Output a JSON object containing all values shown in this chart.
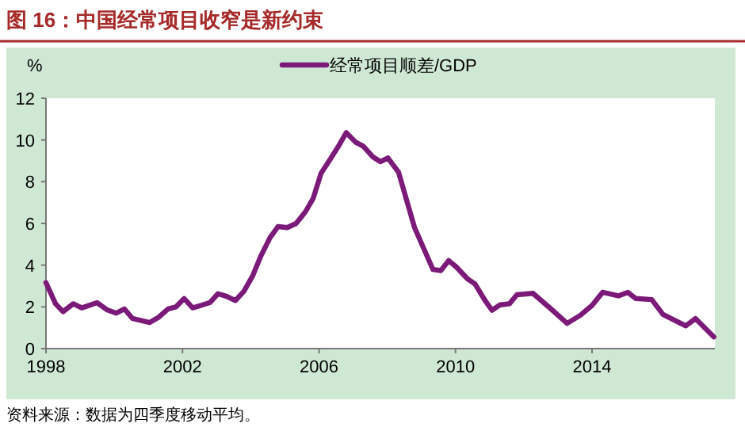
{
  "chart_data": {
    "type": "line",
    "title": "图 16：中国经常项目收窄是新约束",
    "ylabel": "%",
    "annotations": [
      "资料来源：数据为四季度移动平均。"
    ],
    "x": [
      1998.0,
      1998.28,
      1998.5,
      1998.8,
      1999.05,
      1999.5,
      1999.8,
      2000.06,
      2000.3,
      2000.53,
      2001.04,
      2001.3,
      2001.58,
      2001.81,
      2002.05,
      2002.3,
      2002.54,
      2002.8,
      2003.04,
      2003.3,
      2003.55,
      2003.8,
      2004.06,
      2004.3,
      2004.56,
      2004.8,
      2005.07,
      2005.33,
      2005.6,
      2005.83,
      2006.06,
      2006.34,
      2006.57,
      2006.8,
      2007.07,
      2007.3,
      2007.57,
      2007.8,
      2008.02,
      2008.33,
      2008.8,
      2009.34,
      2009.57,
      2009.8,
      2010.03,
      2010.34,
      2010.57,
      2010.88,
      2011.07,
      2011.31,
      2011.58,
      2011.8,
      2012.27,
      2012.8,
      2013.27,
      2013.66,
      2014.0,
      2014.31,
      2014.77,
      2015.05,
      2015.28,
      2015.75,
      2016.08,
      2016.75,
      2017.03,
      2017.57
    ],
    "series": [
      {
        "name": "经常项目顺差/GDP",
        "color": "#7b1a78",
        "values": [
          3.16,
          2.15,
          1.77,
          2.15,
          1.95,
          2.2,
          1.85,
          1.7,
          1.9,
          1.45,
          1.25,
          1.5,
          1.9,
          2.0,
          2.4,
          1.95,
          2.07,
          2.2,
          2.63,
          2.5,
          2.3,
          2.75,
          3.5,
          4.45,
          5.3,
          5.85,
          5.8,
          6.0,
          6.55,
          7.2,
          8.4,
          9.1,
          9.7,
          10.35,
          9.9,
          9.7,
          9.2,
          8.96,
          9.14,
          8.46,
          5.8,
          3.79,
          3.74,
          4.22,
          3.9,
          3.36,
          3.1,
          2.27,
          1.84,
          2.1,
          2.15,
          2.58,
          2.65,
          1.9,
          1.21,
          1.6,
          2.07,
          2.7,
          2.53,
          2.7,
          2.4,
          2.35,
          1.64,
          1.09,
          1.44,
          0.56
        ]
      }
    ],
    "xlim": [
      1998,
      2017.6
    ],
    "ylim": [
      0,
      12
    ],
    "xticks": [
      1998,
      2002,
      2006,
      2010,
      2014
    ],
    "yticks": [
      0,
      2,
      4,
      6,
      8,
      10,
      12
    ],
    "legend": "top",
    "grid": false,
    "line_style": "solid"
  }
}
